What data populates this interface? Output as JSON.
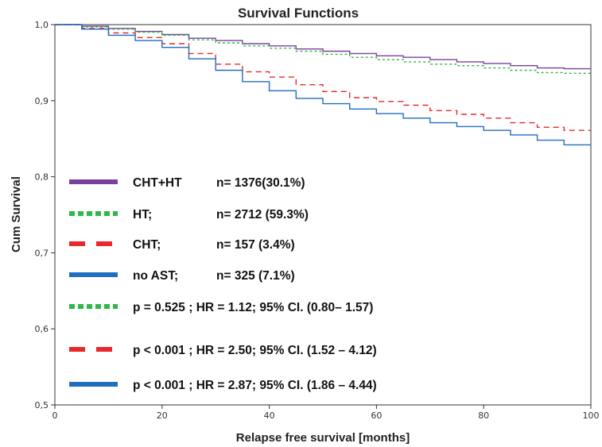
{
  "chart_data": {
    "type": "line",
    "title": "Survival Functions",
    "xlabel": "Relapse free survival [months]",
    "ylabel": "Cum Survival",
    "xlim": [
      0,
      100
    ],
    "ylim": [
      0.5,
      1.0
    ],
    "x_ticks": [
      "0",
      "20",
      "40",
      "60",
      "80",
      "100"
    ],
    "y_ticks": [
      "0,5",
      "0,6",
      "0,7",
      "0,8",
      "0,9",
      "1,0"
    ],
    "grid": false,
    "legend_position": "bottom-left",
    "series": [
      {
        "name": "CHT+HT",
        "count_label": "n= 1376(30.1%)",
        "color": "#7B3FA0",
        "line_style": "solid",
        "x": [
          0,
          5,
          10,
          15,
          20,
          25,
          30,
          35,
          40,
          45,
          50,
          55,
          60,
          65,
          70,
          75,
          80,
          85,
          90,
          95,
          100
        ],
        "y": [
          1.0,
          0.998,
          0.995,
          0.991,
          0.987,
          0.982,
          0.979,
          0.975,
          0.972,
          0.968,
          0.965,
          0.962,
          0.959,
          0.957,
          0.954,
          0.951,
          0.949,
          0.946,
          0.943,
          0.942,
          0.942
        ]
      },
      {
        "name": "HT;",
        "count_label": "n= 2712 (59.3%)",
        "color": "#2DB84A",
        "line_style": "dotted",
        "x": [
          0,
          5,
          10,
          15,
          20,
          25,
          30,
          35,
          40,
          45,
          50,
          55,
          60,
          65,
          70,
          75,
          80,
          85,
          90,
          95,
          100
        ],
        "y": [
          1.0,
          0.997,
          0.994,
          0.99,
          0.986,
          0.98,
          0.976,
          0.972,
          0.969,
          0.965,
          0.961,
          0.957,
          0.954,
          0.951,
          0.948,
          0.946,
          0.943,
          0.94,
          0.937,
          0.936,
          0.936
        ]
      },
      {
        "name": "CHT;",
        "count_label": "n= 157 (3.4%)",
        "color": "#E8282A",
        "line_style": "dashed",
        "x": [
          0,
          5,
          10,
          15,
          20,
          25,
          30,
          35,
          40,
          45,
          50,
          55,
          60,
          65,
          70,
          75,
          80,
          85,
          90,
          95,
          100
        ],
        "y": [
          1.0,
          0.995,
          0.989,
          0.983,
          0.975,
          0.962,
          0.948,
          0.938,
          0.931,
          0.921,
          0.912,
          0.904,
          0.899,
          0.894,
          0.887,
          0.882,
          0.877,
          0.871,
          0.865,
          0.861,
          0.861
        ]
      },
      {
        "name": "no AST;",
        "count_label": "n= 325 (7.1%)",
        "color": "#1F6FC0",
        "line_style": "solid",
        "x": [
          0,
          5,
          10,
          15,
          20,
          25,
          30,
          35,
          40,
          45,
          50,
          55,
          60,
          65,
          70,
          75,
          80,
          85,
          90,
          95,
          100
        ],
        "y": [
          1.0,
          0.994,
          0.986,
          0.979,
          0.97,
          0.955,
          0.94,
          0.925,
          0.913,
          0.903,
          0.896,
          0.889,
          0.883,
          0.877,
          0.871,
          0.866,
          0.861,
          0.855,
          0.848,
          0.842,
          0.842
        ]
      }
    ],
    "comparisons": [
      {
        "color": "#2DB84A",
        "line_style": "dotted",
        "text": "p = 0.525 ; HR = 1.12; 95% CI. (0.80– 1.57)"
      },
      {
        "color": "#E8282A",
        "line_style": "dashed",
        "text": "p < 0.001 ; HR = 2.50; 95% CI. (1.52 – 4.12)"
      },
      {
        "color": "#1F6FC0",
        "line_style": "solid",
        "text": "p < 0.001 ; HR = 2.87; 95% CI. (1.86 – 4.44)"
      }
    ]
  }
}
